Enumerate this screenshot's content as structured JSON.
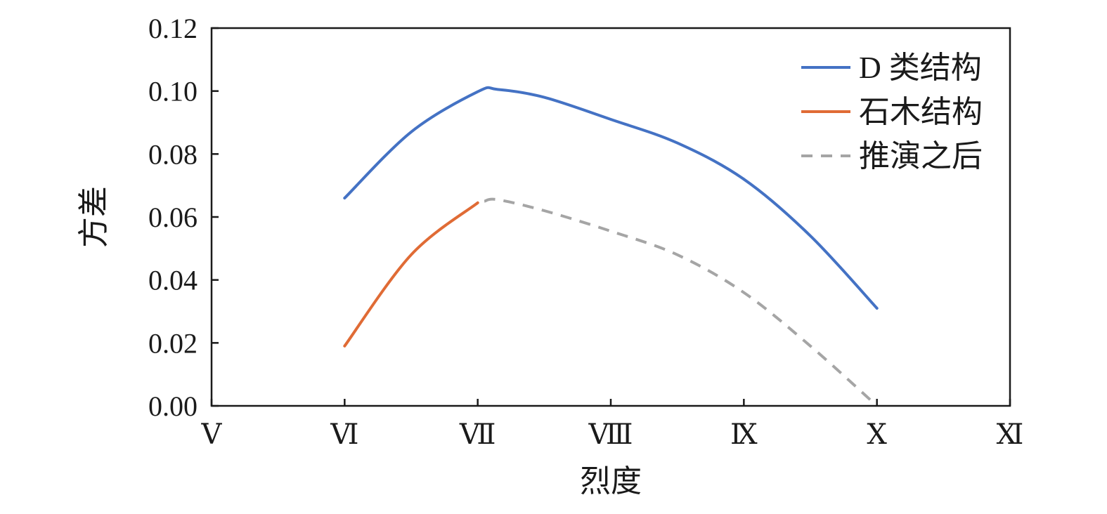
{
  "chart_data": {
    "type": "line",
    "xlabel": "烈度",
    "ylabel": "方差",
    "categories": [
      "Ⅴ",
      "Ⅵ",
      "Ⅶ",
      "Ⅷ",
      "Ⅸ",
      "Ⅹ",
      "Ⅺ"
    ],
    "yticks": [
      "0.00",
      "0.02",
      "0.04",
      "0.06",
      "0.08",
      "0.10",
      "0.12"
    ],
    "ylim": [
      0,
      0.12
    ],
    "grid": false,
    "legend_position": "top-right",
    "series": [
      {
        "name": "D 类结构",
        "color": "#4472C4",
        "dash": "solid",
        "points": [
          [
            1,
            0.066
          ],
          [
            1.5,
            0.087
          ],
          [
            2,
            0.0998
          ],
          [
            2.15,
            0.1005
          ],
          [
            2.5,
            0.098
          ],
          [
            3,
            0.091
          ],
          [
            3.5,
            0.0835
          ],
          [
            4,
            0.072
          ],
          [
            4.5,
            0.054
          ],
          [
            5,
            0.031
          ]
        ]
      },
      {
        "name": "石木结构",
        "color": "#E06B35",
        "dash": "solid",
        "points": [
          [
            1,
            0.019
          ],
          [
            1.5,
            0.048
          ],
          [
            2,
            0.0645
          ]
        ]
      },
      {
        "name": "推演之后",
        "color": "#A5A5A5",
        "dash": "dashed",
        "points": [
          [
            2.05,
            0.065
          ],
          [
            2.15,
            0.0655
          ],
          [
            2.5,
            0.062
          ],
          [
            3,
            0.0555
          ],
          [
            3.5,
            0.048
          ],
          [
            4,
            0.036
          ],
          [
            4.5,
            0.019
          ],
          [
            5,
            0.0
          ]
        ]
      }
    ]
  }
}
